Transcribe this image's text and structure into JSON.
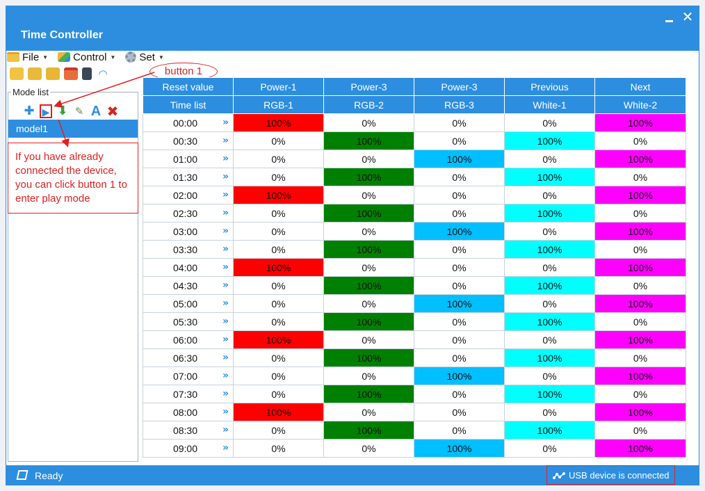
{
  "window": {
    "title": "Time Controller",
    "minimize_label": "",
    "close_label": "✕"
  },
  "menubar": {
    "file_label": "File",
    "control_label": "Control",
    "set_label": "Set"
  },
  "toolbar": {
    "icons": [
      "add-folder-icon",
      "open-folder-icon",
      "save-folder-icon",
      "calendar-icon",
      "device-icon",
      "wifi-icon"
    ]
  },
  "mode_list": {
    "label": "Mode list",
    "tools": [
      {
        "icon": "add-icon",
        "glyph": "✚"
      },
      {
        "icon": "play-icon",
        "glyph": "▶"
      },
      {
        "icon": "download-icon",
        "glyph": "⬇"
      },
      {
        "icon": "edit-icon",
        "glyph": "✎"
      },
      {
        "icon": "rename-icon",
        "glyph": "A"
      },
      {
        "icon": "delete-icon",
        "glyph": "✖"
      }
    ],
    "items": [
      "model1"
    ]
  },
  "annotations": {
    "bubble_text": "button 1",
    "box_text": "If you have already connected the device, you can click button 1 to enter play mode",
    "color": "#e02020"
  },
  "table": {
    "header_row1": [
      "Reset value",
      "Power-1",
      "Power-3",
      "Power-3",
      "Previous",
      "Next"
    ],
    "header_row2": [
      "Time list",
      "RGB-1",
      "RGB-2",
      "RGB-3",
      "White-1",
      "White-2"
    ],
    "chevron": "»",
    "column_colors": [
      "#ff0000",
      "#008000",
      "#00bfff",
      "#00ffff",
      "#ff00ff"
    ],
    "rows": [
      {
        "time": "00:00",
        "values": [
          "100%",
          "0%",
          "0%",
          "0%",
          "100%"
        ]
      },
      {
        "time": "00:30",
        "values": [
          "0%",
          "100%",
          "0%",
          "100%",
          "0%"
        ]
      },
      {
        "time": "01:00",
        "values": [
          "0%",
          "0%",
          "100%",
          "0%",
          "100%"
        ]
      },
      {
        "time": "01:30",
        "values": [
          "0%",
          "100%",
          "0%",
          "100%",
          "0%"
        ]
      },
      {
        "time": "02:00",
        "values": [
          "100%",
          "0%",
          "0%",
          "0%",
          "100%"
        ]
      },
      {
        "time": "02:30",
        "values": [
          "0%",
          "100%",
          "0%",
          "100%",
          "0%"
        ]
      },
      {
        "time": "03:00",
        "values": [
          "0%",
          "0%",
          "100%",
          "0%",
          "100%"
        ]
      },
      {
        "time": "03:30",
        "values": [
          "0%",
          "100%",
          "0%",
          "100%",
          "0%"
        ]
      },
      {
        "time": "04:00",
        "values": [
          "100%",
          "0%",
          "0%",
          "0%",
          "100%"
        ]
      },
      {
        "time": "04:30",
        "values": [
          "0%",
          "100%",
          "0%",
          "100%",
          "0%"
        ]
      },
      {
        "time": "05:00",
        "values": [
          "0%",
          "0%",
          "100%",
          "0%",
          "100%"
        ]
      },
      {
        "time": "05:30",
        "values": [
          "0%",
          "100%",
          "0%",
          "100%",
          "0%"
        ]
      },
      {
        "time": "06:00",
        "values": [
          "100%",
          "0%",
          "0%",
          "0%",
          "100%"
        ]
      },
      {
        "time": "06:30",
        "values": [
          "0%",
          "100%",
          "0%",
          "100%",
          "0%"
        ]
      },
      {
        "time": "07:00",
        "values": [
          "0%",
          "0%",
          "100%",
          "0%",
          "100%"
        ]
      },
      {
        "time": "07:30",
        "values": [
          "0%",
          "100%",
          "0%",
          "100%",
          "0%"
        ]
      },
      {
        "time": "08:00",
        "values": [
          "100%",
          "0%",
          "0%",
          "0%",
          "100%"
        ]
      },
      {
        "time": "08:30",
        "values": [
          "0%",
          "100%",
          "0%",
          "100%",
          "0%"
        ]
      },
      {
        "time": "09:00",
        "values": [
          "0%",
          "0%",
          "100%",
          "0%",
          "100%"
        ]
      }
    ]
  },
  "statusbar": {
    "status_text": "Ready",
    "usb_text": "USB device is connected"
  },
  "colors": {
    "accent": "#2d8ee0",
    "annotation_red": "#e02020"
  }
}
